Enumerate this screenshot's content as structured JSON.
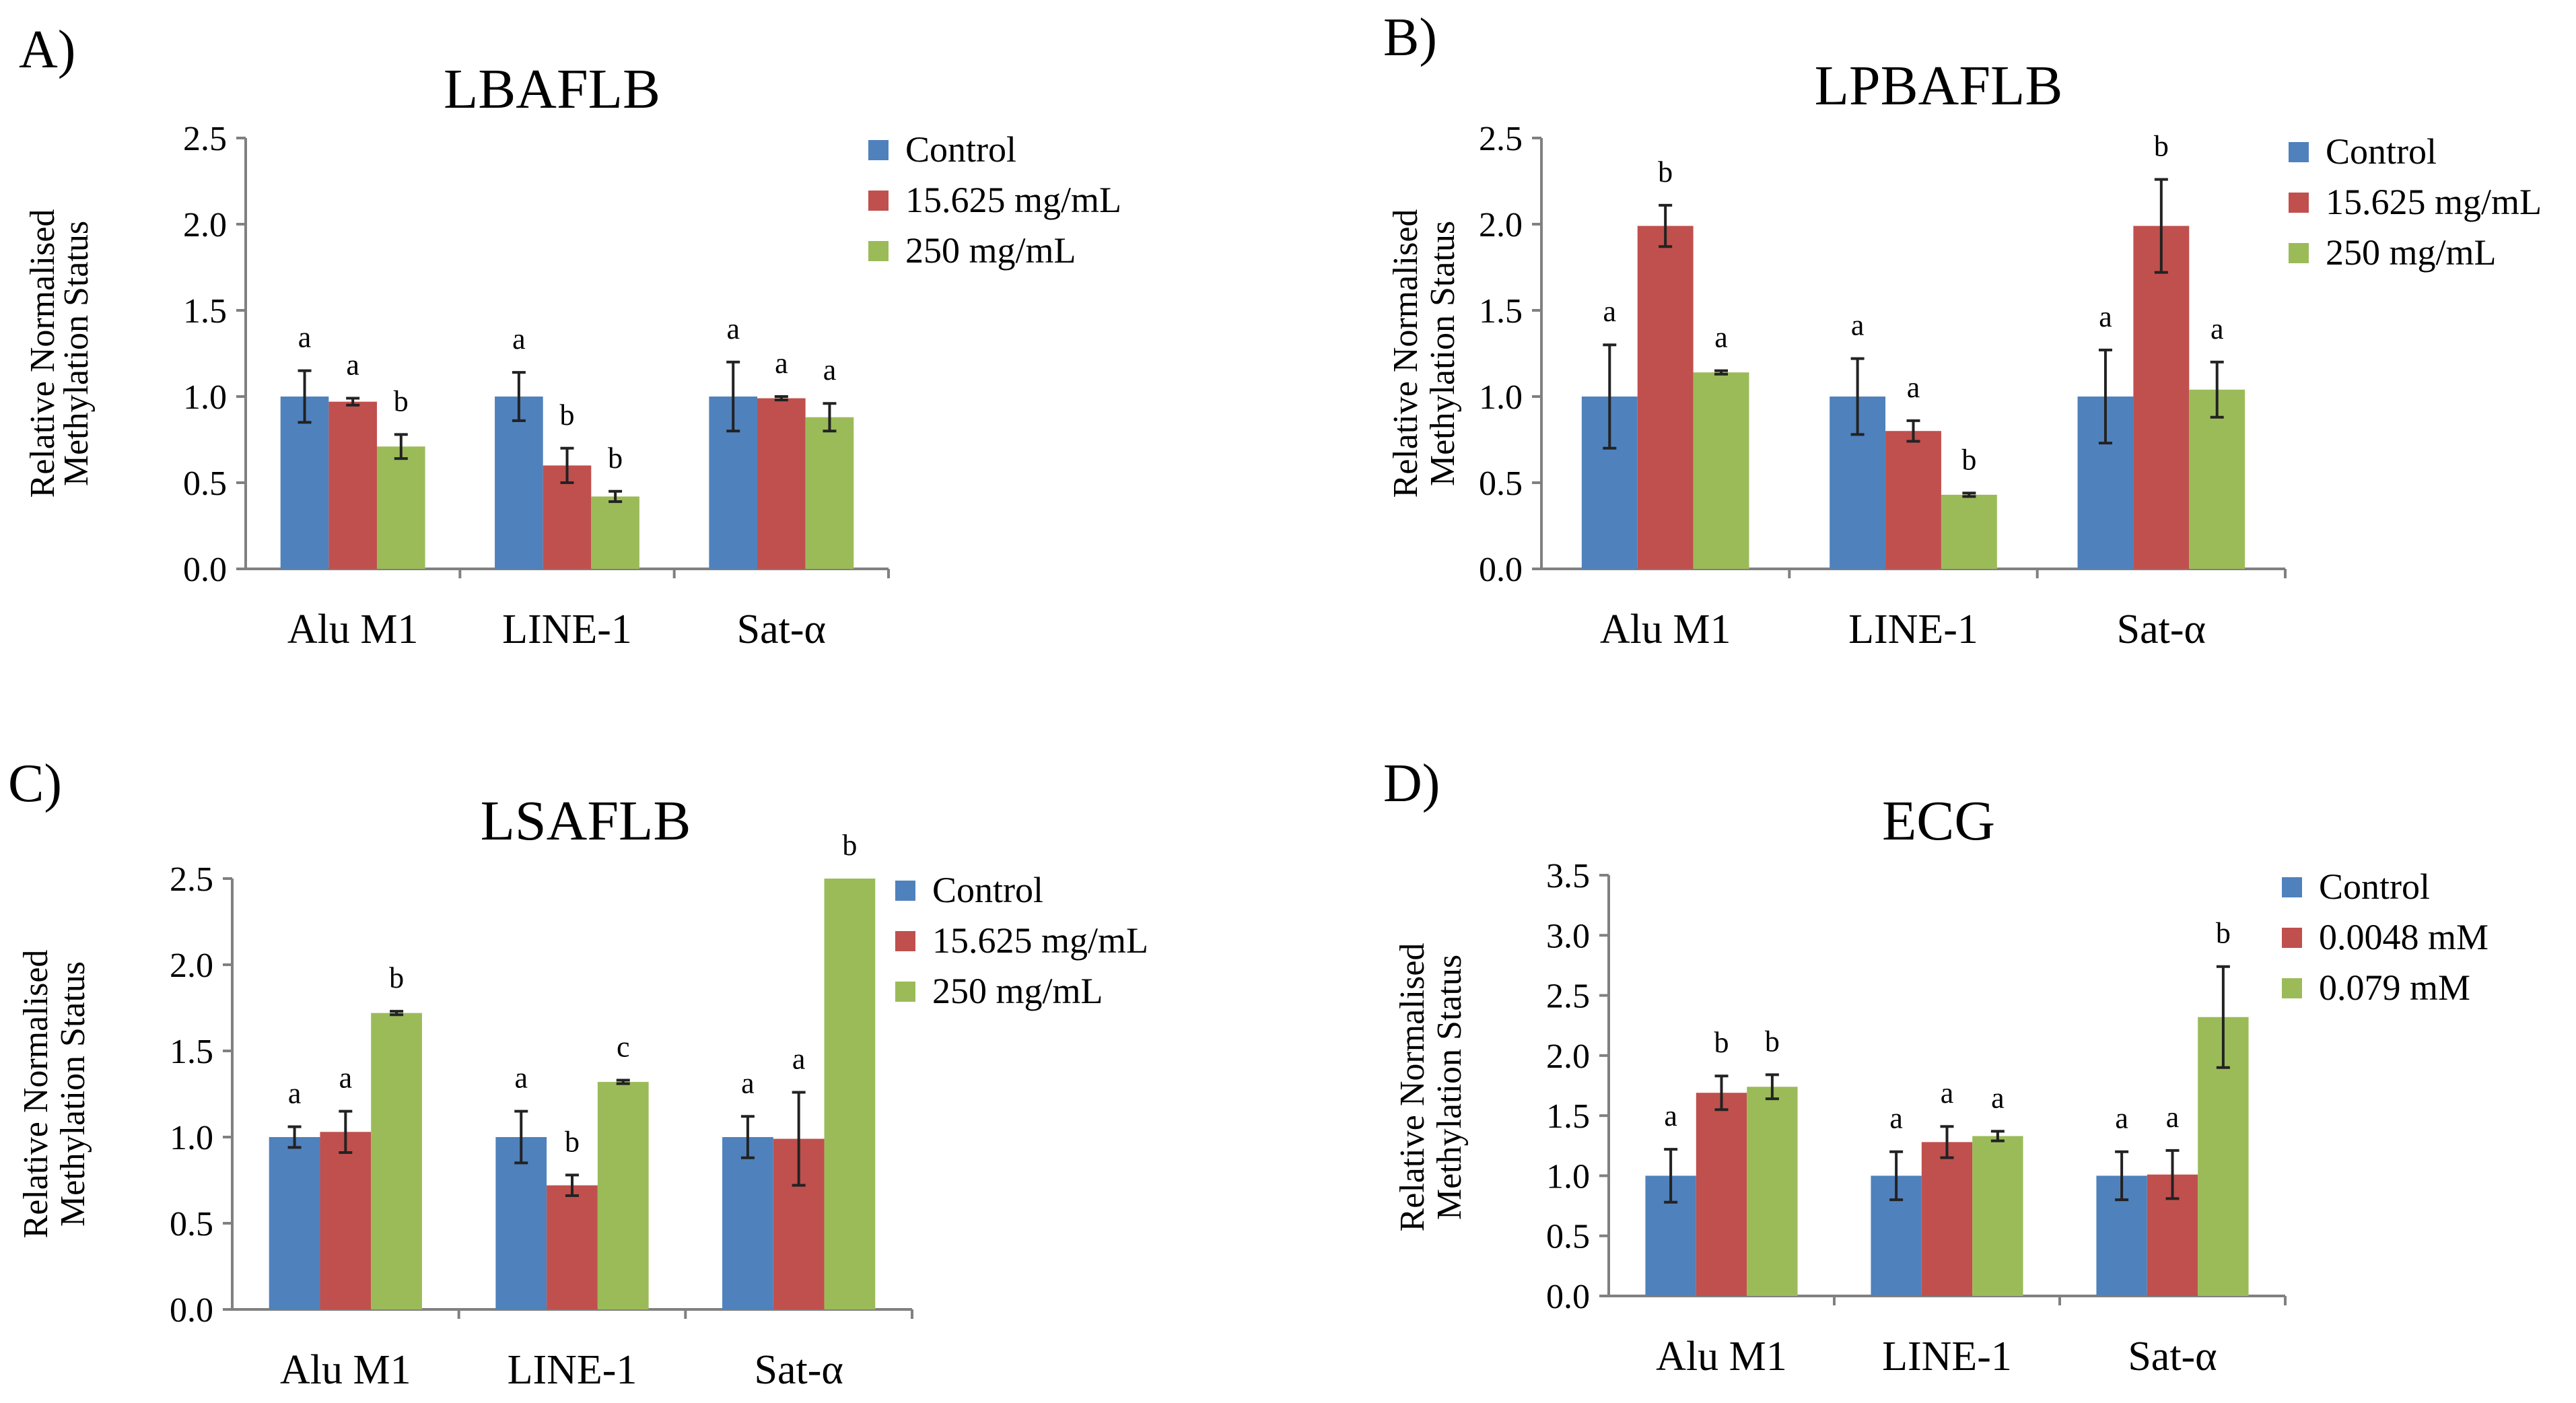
{
  "chart_data": [
    {
      "panel": "A)",
      "type": "bar",
      "title": "LBAFLB",
      "ylabel": [
        "Relative Normalised",
        "Methylation Status"
      ],
      "categories": [
        "Alu M1",
        "LINE-1",
        "Sat-α"
      ],
      "ylim": [
        0,
        2.5
      ],
      "yticks": [
        "0.0",
        "0.5",
        "1.0",
        "1.5",
        "2.0",
        "2.5"
      ],
      "series": [
        {
          "name": "Control",
          "values": [
            1.0,
            1.0,
            1.0
          ],
          "errors": [
            0.15,
            0.14,
            0.2
          ],
          "letters": [
            "a",
            "a",
            "a"
          ]
        },
        {
          "name": "15.625 mg/mL",
          "values": [
            0.97,
            0.6,
            0.99
          ],
          "errors": [
            0.02,
            0.1,
            0.01
          ],
          "letters": [
            "a",
            "b",
            "a"
          ]
        },
        {
          "name": "250 mg/mL",
          "values": [
            0.71,
            0.42,
            0.88
          ],
          "errors": [
            0.07,
            0.03,
            0.08
          ],
          "letters": [
            "b",
            "b",
            "a"
          ]
        }
      ]
    },
    {
      "panel": "B)",
      "type": "bar",
      "title": "LPBAFLB",
      "ylabel": [
        "Relative Normalised",
        "Methylation Status"
      ],
      "categories": [
        "Alu M1",
        "LINE-1",
        "Sat-α"
      ],
      "ylim": [
        0,
        2.5
      ],
      "yticks": [
        "0.0",
        "0.5",
        "1.0",
        "1.5",
        "2.0",
        "2.5"
      ],
      "series": [
        {
          "name": "Control",
          "values": [
            1.0,
            1.0,
            1.0
          ],
          "errors": [
            0.3,
            0.22,
            0.27
          ],
          "letters": [
            "a",
            "a",
            "a"
          ]
        },
        {
          "name": "15.625 mg/mL",
          "values": [
            1.99,
            0.8,
            1.99
          ],
          "errors": [
            0.12,
            0.06,
            0.27
          ],
          "letters": [
            "b",
            "a",
            "b"
          ]
        },
        {
          "name": "250 mg/mL",
          "values": [
            1.14,
            0.43,
            1.04
          ],
          "errors": [
            0.01,
            0.01,
            0.16
          ],
          "letters": [
            "a",
            "b",
            "a"
          ]
        }
      ]
    },
    {
      "panel": "C)",
      "type": "bar",
      "title": "LSAFLB",
      "ylabel": [
        "Relative Normalised",
        "Methylation Status"
      ],
      "categories": [
        "Alu M1",
        "LINE-1",
        "Sat-α"
      ],
      "ylim": [
        0,
        2.5
      ],
      "yticks": [
        "0.0",
        "0.5",
        "1.0",
        "1.5",
        "2.0",
        "2.5"
      ],
      "series": [
        {
          "name": "Control",
          "values": [
            1.0,
            1.0,
            1.0
          ],
          "errors": [
            0.06,
            0.15,
            0.12
          ],
          "letters": [
            "a",
            "a",
            "a"
          ]
        },
        {
          "name": "15.625 mg/mL",
          "values": [
            1.03,
            0.72,
            0.99
          ],
          "errors": [
            0.12,
            0.06,
            0.27
          ],
          "letters": [
            "a",
            "b",
            "a"
          ]
        },
        {
          "name": "250 mg/mL",
          "values": [
            1.72,
            1.32,
            2.5
          ],
          "errors": [
            0.01,
            0.01,
            0.0
          ],
          "letters": [
            "b",
            "c",
            "b"
          ]
        }
      ]
    },
    {
      "panel": "D)",
      "type": "bar",
      "title": "ECG",
      "ylabel": [
        "Relative Normalised",
        "Methylation Status"
      ],
      "categories": [
        "Alu M1",
        "LINE-1",
        "Sat-α"
      ],
      "ylim": [
        0,
        3.5
      ],
      "yticks": [
        "0.0",
        "0.5",
        "1.0",
        "1.5",
        "2.0",
        "2.5",
        "3.0",
        "3.5"
      ],
      "series": [
        {
          "name": "Control",
          "values": [
            1.0,
            1.0,
            1.0
          ],
          "errors": [
            0.22,
            0.2,
            0.2
          ],
          "letters": [
            "a",
            "a",
            "a"
          ]
        },
        {
          "name": "0.0048 mM",
          "values": [
            1.69,
            1.28,
            1.01
          ],
          "errors": [
            0.14,
            0.13,
            0.2
          ],
          "letters": [
            "b",
            "a",
            "a"
          ]
        },
        {
          "name": "0.079 mM",
          "values": [
            1.74,
            1.33,
            2.32
          ],
          "errors": [
            0.1,
            0.04,
            0.42
          ],
          "letters": [
            "b",
            "a",
            "b"
          ]
        }
      ]
    }
  ],
  "colors": {
    "control": "#4f81bd",
    "low": "#c0504d",
    "high": "#9bbb59"
  }
}
